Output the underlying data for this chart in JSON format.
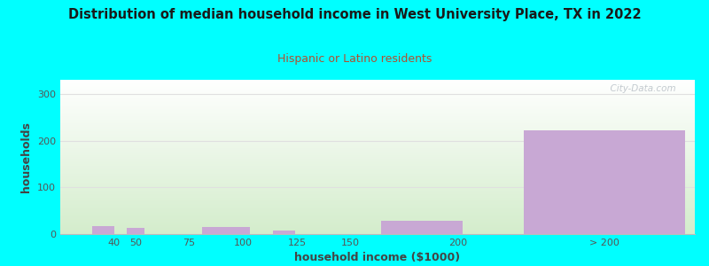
{
  "title": "Distribution of median household income in West University Place, TX in 2022",
  "subtitle": "Hispanic or Latino residents",
  "xlabel": "household income ($1000)",
  "ylabel": "households",
  "values": [
    18,
    13,
    0,
    15,
    7,
    0,
    28,
    222
  ],
  "bar_color": "#c8a8d4",
  "bar_widths": [
    10,
    8,
    0,
    22,
    10,
    0,
    38,
    75
  ],
  "bar_centers": [
    35,
    50,
    63,
    92,
    119,
    138,
    183,
    268
  ],
  "bg_color": "#00ffff",
  "plot_bg_gradient_top_right": "#ffffff",
  "plot_bg_gradient_bottom_left": "#d4edcc",
  "title_color": "#1a1a1a",
  "subtitle_color": "#b05030",
  "axis_label_color": "#444444",
  "tick_label_color": "#555555",
  "grid_color": "#e0e0e0",
  "yticks": [
    0,
    100,
    200,
    300
  ],
  "ylim": [
    0,
    330
  ],
  "xtick_positions": [
    40,
    50,
    75,
    100,
    125,
    150,
    200,
    268
  ],
  "xtick_labels": [
    "40",
    "50",
    "75",
    "100",
    "125",
    "150",
    "200",
    "> 200"
  ],
  "watermark": "  City-Data.com"
}
